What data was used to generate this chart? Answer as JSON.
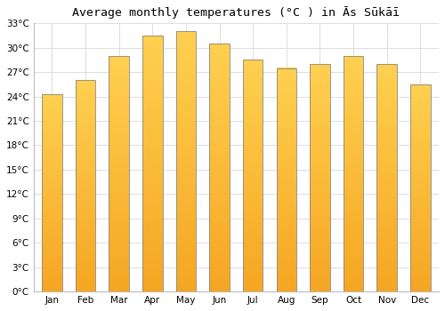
{
  "title": "Average monthly temperatures (°C ) in Ās Sūkāī",
  "months": [
    "Jan",
    "Feb",
    "Mar",
    "Apr",
    "May",
    "Jun",
    "Jul",
    "Aug",
    "Sep",
    "Oct",
    "Nov",
    "Dec"
  ],
  "values": [
    24.3,
    26.0,
    29.0,
    31.5,
    32.0,
    30.5,
    28.5,
    27.5,
    28.0,
    29.0,
    28.0,
    25.5
  ],
  "ylim": [
    0,
    33
  ],
  "yticks": [
    0,
    3,
    6,
    9,
    12,
    15,
    18,
    21,
    24,
    27,
    30,
    33
  ],
  "bar_color_bottom": "#F5A623",
  "bar_color_top": "#FFD050",
  "bar_edge_color": "#888888",
  "background_color": "#ffffff",
  "grid_color": "#dddddd",
  "title_fontsize": 9.5,
  "tick_fontsize": 7.5,
  "bar_width": 0.6,
  "n_grad": 60
}
